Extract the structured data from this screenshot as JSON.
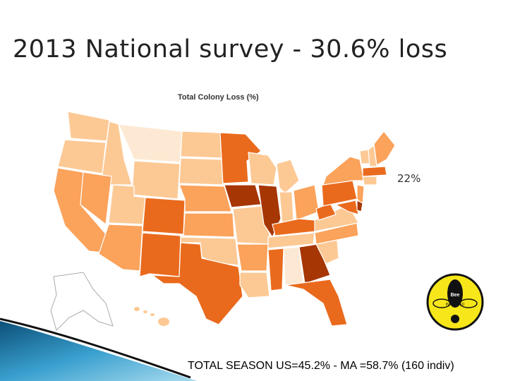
{
  "slide": {
    "title": "2013 National survey - 30.6% loss",
    "footer": "TOTAL SEASON US=45.2% - MA =58.7% (160 indiv)"
  },
  "map": {
    "title": "Total Colony Loss (%)",
    "annotation": "22%",
    "legend_note": ""
  },
  "logo": {
    "text_top": "Bee",
    "text_bottom": "INFORMED"
  },
  "colors": {
    "very_light": "#fde9d3",
    "light": "#fcc995",
    "medium": "#fba25b",
    "dark": "#ea6a1d",
    "darkest": "#a63603",
    "accent_blue": "#3a9bc8"
  }
}
